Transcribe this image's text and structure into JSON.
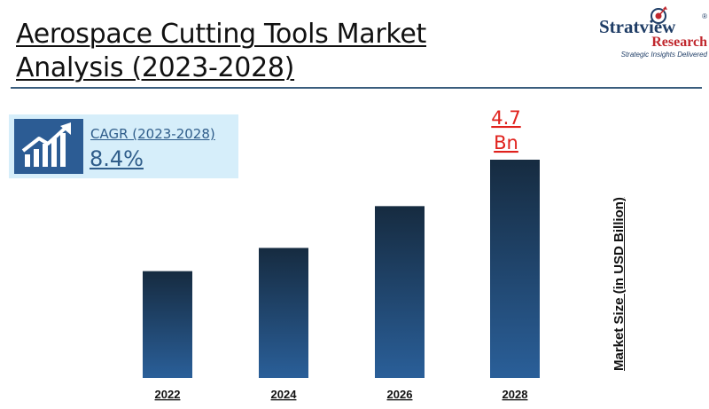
{
  "header": {
    "title_line1": "Aerospace Cutting Tools Market",
    "title_line2": "Analysis (2023-2028)"
  },
  "logo": {
    "name_part1": "Stratview",
    "name_part2": "Research",
    "registered": "®",
    "tagline": "Strategic Insights Delivered",
    "icon": "compass-arrow-icon"
  },
  "cagr": {
    "label": "CAGR (2023-2028)",
    "value": "8.4%",
    "icon": "growth-chart-icon"
  },
  "colors": {
    "bar_top": "#162b40",
    "bar_bottom": "#2a5f99",
    "annotation": "#e0211c",
    "rule": "#3a5d7d",
    "cagr_bg": "#d6eefa",
    "cagr_text": "#2f5d8a"
  },
  "chart_data": {
    "type": "bar",
    "categories": [
      "2022",
      "2024",
      "2026",
      "2028"
    ],
    "values": [
      2.3,
      2.8,
      3.7,
      4.7
    ],
    "ylabel": "Market Size (in  USD Billion)",
    "xlabel": "",
    "title": "",
    "ylim": [
      0,
      4.7
    ],
    "grid": false,
    "legend": "none",
    "annotations": [
      {
        "category": "2028",
        "line1": "4.7",
        "line2": "Bn"
      }
    ]
  }
}
